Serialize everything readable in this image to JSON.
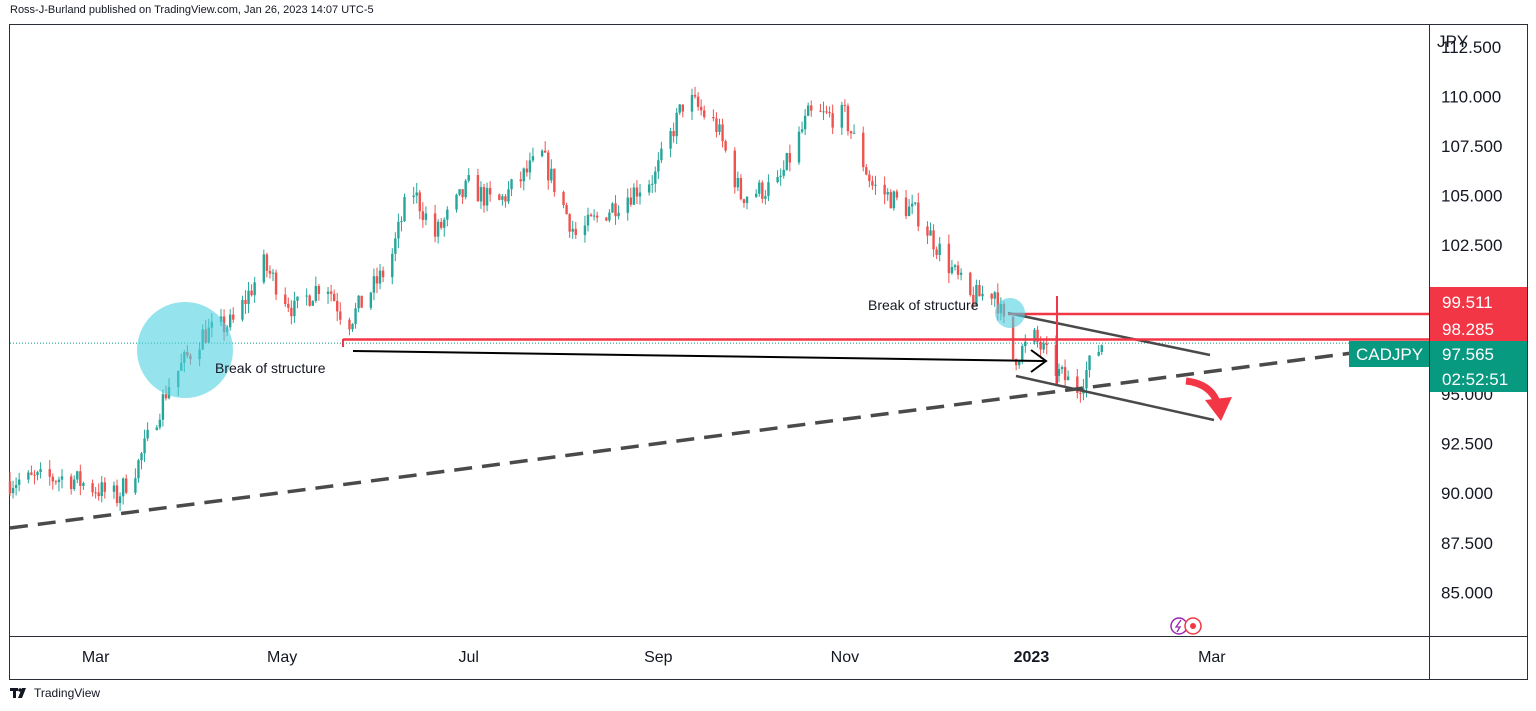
{
  "header": {
    "text": "Ross-J-Burland published on TradingView.com, Jan 26, 2023 14:07 UTC-5"
  },
  "footer": {
    "brand": "TradingView"
  },
  "colors": {
    "up": "#26a69a",
    "down": "#ef5350",
    "level": "#f23645",
    "symbol_bg": "#089981",
    "circle": "#4dd0e1",
    "trend": "#4a4a4a"
  },
  "chart_data": {
    "type": "candlestick",
    "currency": "JPY",
    "symbol": "CADJPY",
    "last_price": "97.565",
    "countdown": "02:52:51",
    "ylim": [
      82.8,
      113.6
    ],
    "y_ticks": [
      "112.500",
      "110.000",
      "107.500",
      "105.000",
      "102.500",
      "95.000",
      "92.500",
      "90.000",
      "87.500",
      "85.000"
    ],
    "x_ticks": [
      {
        "label": "Mar",
        "date": "2022-03",
        "bold": false
      },
      {
        "label": "May",
        "date": "2022-05",
        "bold": false
      },
      {
        "label": "Jul",
        "date": "2022-07",
        "bold": false
      },
      {
        "label": "Sep",
        "date": "2022-09",
        "bold": false
      },
      {
        "label": "Nov",
        "date": "2022-11",
        "bold": false
      },
      {
        "label": "2023",
        "date": "2023-01",
        "bold": true
      },
      {
        "label": "Mar",
        "date": "2023-03",
        "bold": false
      }
    ],
    "price_levels": [
      {
        "label": "99.511",
        "value": 99.511
      },
      {
        "label": "98.285",
        "value": 98.285
      }
    ],
    "annotations": [
      {
        "text": "Break of structure"
      },
      {
        "text": "Break of structure"
      }
    ],
    "price_path": [
      {
        "date": "2022-02-01",
        "price": 90.6
      },
      {
        "date": "2022-02-20",
        "price": 90.8
      },
      {
        "date": "2022-03-08",
        "price": 89.8
      },
      {
        "date": "2022-03-15",
        "price": 91.5
      },
      {
        "date": "2022-03-25",
        "price": 95.5
      },
      {
        "date": "2022-04-05",
        "price": 98.0
      },
      {
        "date": "2022-04-15",
        "price": 98.6
      },
      {
        "date": "2022-04-25",
        "price": 101.5
      },
      {
        "date": "2022-05-05",
        "price": 99.2
      },
      {
        "date": "2022-05-15",
        "price": 100.8
      },
      {
        "date": "2022-05-22",
        "price": 98.5
      },
      {
        "date": "2022-06-05",
        "price": 101.5
      },
      {
        "date": "2022-06-12",
        "price": 105.5
      },
      {
        "date": "2022-06-20",
        "price": 103.0
      },
      {
        "date": "2022-07-01",
        "price": 105.5
      },
      {
        "date": "2022-07-10",
        "price": 104.5
      },
      {
        "date": "2022-07-25",
        "price": 107.0
      },
      {
        "date": "2022-08-05",
        "price": 103.0
      },
      {
        "date": "2022-08-20",
        "price": 104.8
      },
      {
        "date": "2022-08-31",
        "price": 106.0
      },
      {
        "date": "2022-09-10",
        "price": 110.0
      },
      {
        "date": "2022-09-20",
        "price": 108.5
      },
      {
        "date": "2022-09-28",
        "price": 105.0
      },
      {
        "date": "2022-10-10",
        "price": 105.5
      },
      {
        "date": "2022-10-20",
        "price": 109.0
      },
      {
        "date": "2022-11-01",
        "price": 109.0
      },
      {
        "date": "2022-11-10",
        "price": 105.5
      },
      {
        "date": "2022-11-25",
        "price": 104.0
      },
      {
        "date": "2022-12-05",
        "price": 101.5
      },
      {
        "date": "2022-12-12",
        "price": 99.8
      },
      {
        "date": "2022-12-20",
        "price": 100.2
      },
      {
        "date": "2022-12-26",
        "price": 96.8
      },
      {
        "date": "2023-01-02",
        "price": 97.8
      },
      {
        "date": "2023-01-10",
        "price": 96.0
      },
      {
        "date": "2023-01-16",
        "price": 95.3
      },
      {
        "date": "2023-01-24",
        "price": 97.565
      }
    ]
  }
}
